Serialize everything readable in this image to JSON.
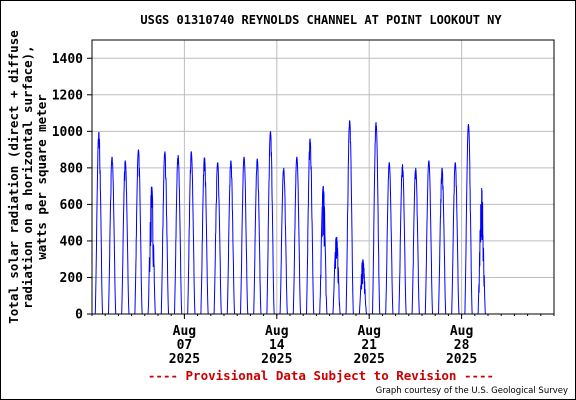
{
  "chart_data": {
    "type": "line",
    "title": "USGS 01310740 REYNOLDS CHANNEL AT POINT LOOKOUT NY",
    "ylabel_lines": [
      "Total solar radiation (direct + diffuse",
      "radiation on a horizontal surface),",
      "watts per square meter"
    ],
    "ylim": [
      0,
      1500
    ],
    "yticks": [
      0,
      200,
      400,
      600,
      800,
      1000,
      1200,
      1400
    ],
    "x_start": "2025-07-31",
    "x_end": "2025-09-04",
    "xticks": [
      {
        "date": "2025-08-07",
        "lines": [
          "Aug",
          "07",
          "2025"
        ]
      },
      {
        "date": "2025-08-14",
        "lines": [
          "Aug",
          "14",
          "2025"
        ]
      },
      {
        "date": "2025-08-21",
        "lines": [
          "Aug",
          "21",
          "2025"
        ]
      },
      {
        "date": "2025-08-28",
        "lines": [
          "Aug",
          "28",
          "2025"
        ]
      }
    ],
    "grid": true,
    "line_color": "#0000ff",
    "series": [
      {
        "daily_peaks": [
          {
            "date": "2025-07-31",
            "peak": 1000
          },
          {
            "date": "2025-08-01",
            "peak": 860
          },
          {
            "date": "2025-08-02",
            "peak": 840
          },
          {
            "date": "2025-08-03",
            "peak": 900
          },
          {
            "date": "2025-08-04",
            "peak": 700
          },
          {
            "date": "2025-08-05",
            "peak": 890
          },
          {
            "date": "2025-08-06",
            "peak": 870
          },
          {
            "date": "2025-08-07",
            "peak": 890
          },
          {
            "date": "2025-08-08",
            "peak": 860
          },
          {
            "date": "2025-08-09",
            "peak": 830
          },
          {
            "date": "2025-08-10",
            "peak": 840
          },
          {
            "date": "2025-08-11",
            "peak": 860
          },
          {
            "date": "2025-08-12",
            "peak": 850
          },
          {
            "date": "2025-08-13",
            "peak": 1000
          },
          {
            "date": "2025-08-14",
            "peak": 800
          },
          {
            "date": "2025-08-15",
            "peak": 860
          },
          {
            "date": "2025-08-16",
            "peak": 960
          },
          {
            "date": "2025-08-17",
            "peak": 700
          },
          {
            "date": "2025-08-18",
            "peak": 430
          },
          {
            "date": "2025-08-19",
            "peak": 1060
          },
          {
            "date": "2025-08-20",
            "peak": 300
          },
          {
            "date": "2025-08-21",
            "peak": 1050
          },
          {
            "date": "2025-08-22",
            "peak": 830
          },
          {
            "date": "2025-08-23",
            "peak": 820
          },
          {
            "date": "2025-08-24",
            "peak": 800
          },
          {
            "date": "2025-08-25",
            "peak": 840
          },
          {
            "date": "2025-08-26",
            "peak": 800
          },
          {
            "date": "2025-08-27",
            "peak": 830
          },
          {
            "date": "2025-08-28",
            "peak": 1040
          },
          {
            "date": "2025-08-29",
            "peak": 690
          }
        ]
      }
    ]
  },
  "footer": {
    "provisional": "---- Provisional Data Subject to Revision ----",
    "credit": "Graph courtesy of the U.S. Geological Survey"
  }
}
